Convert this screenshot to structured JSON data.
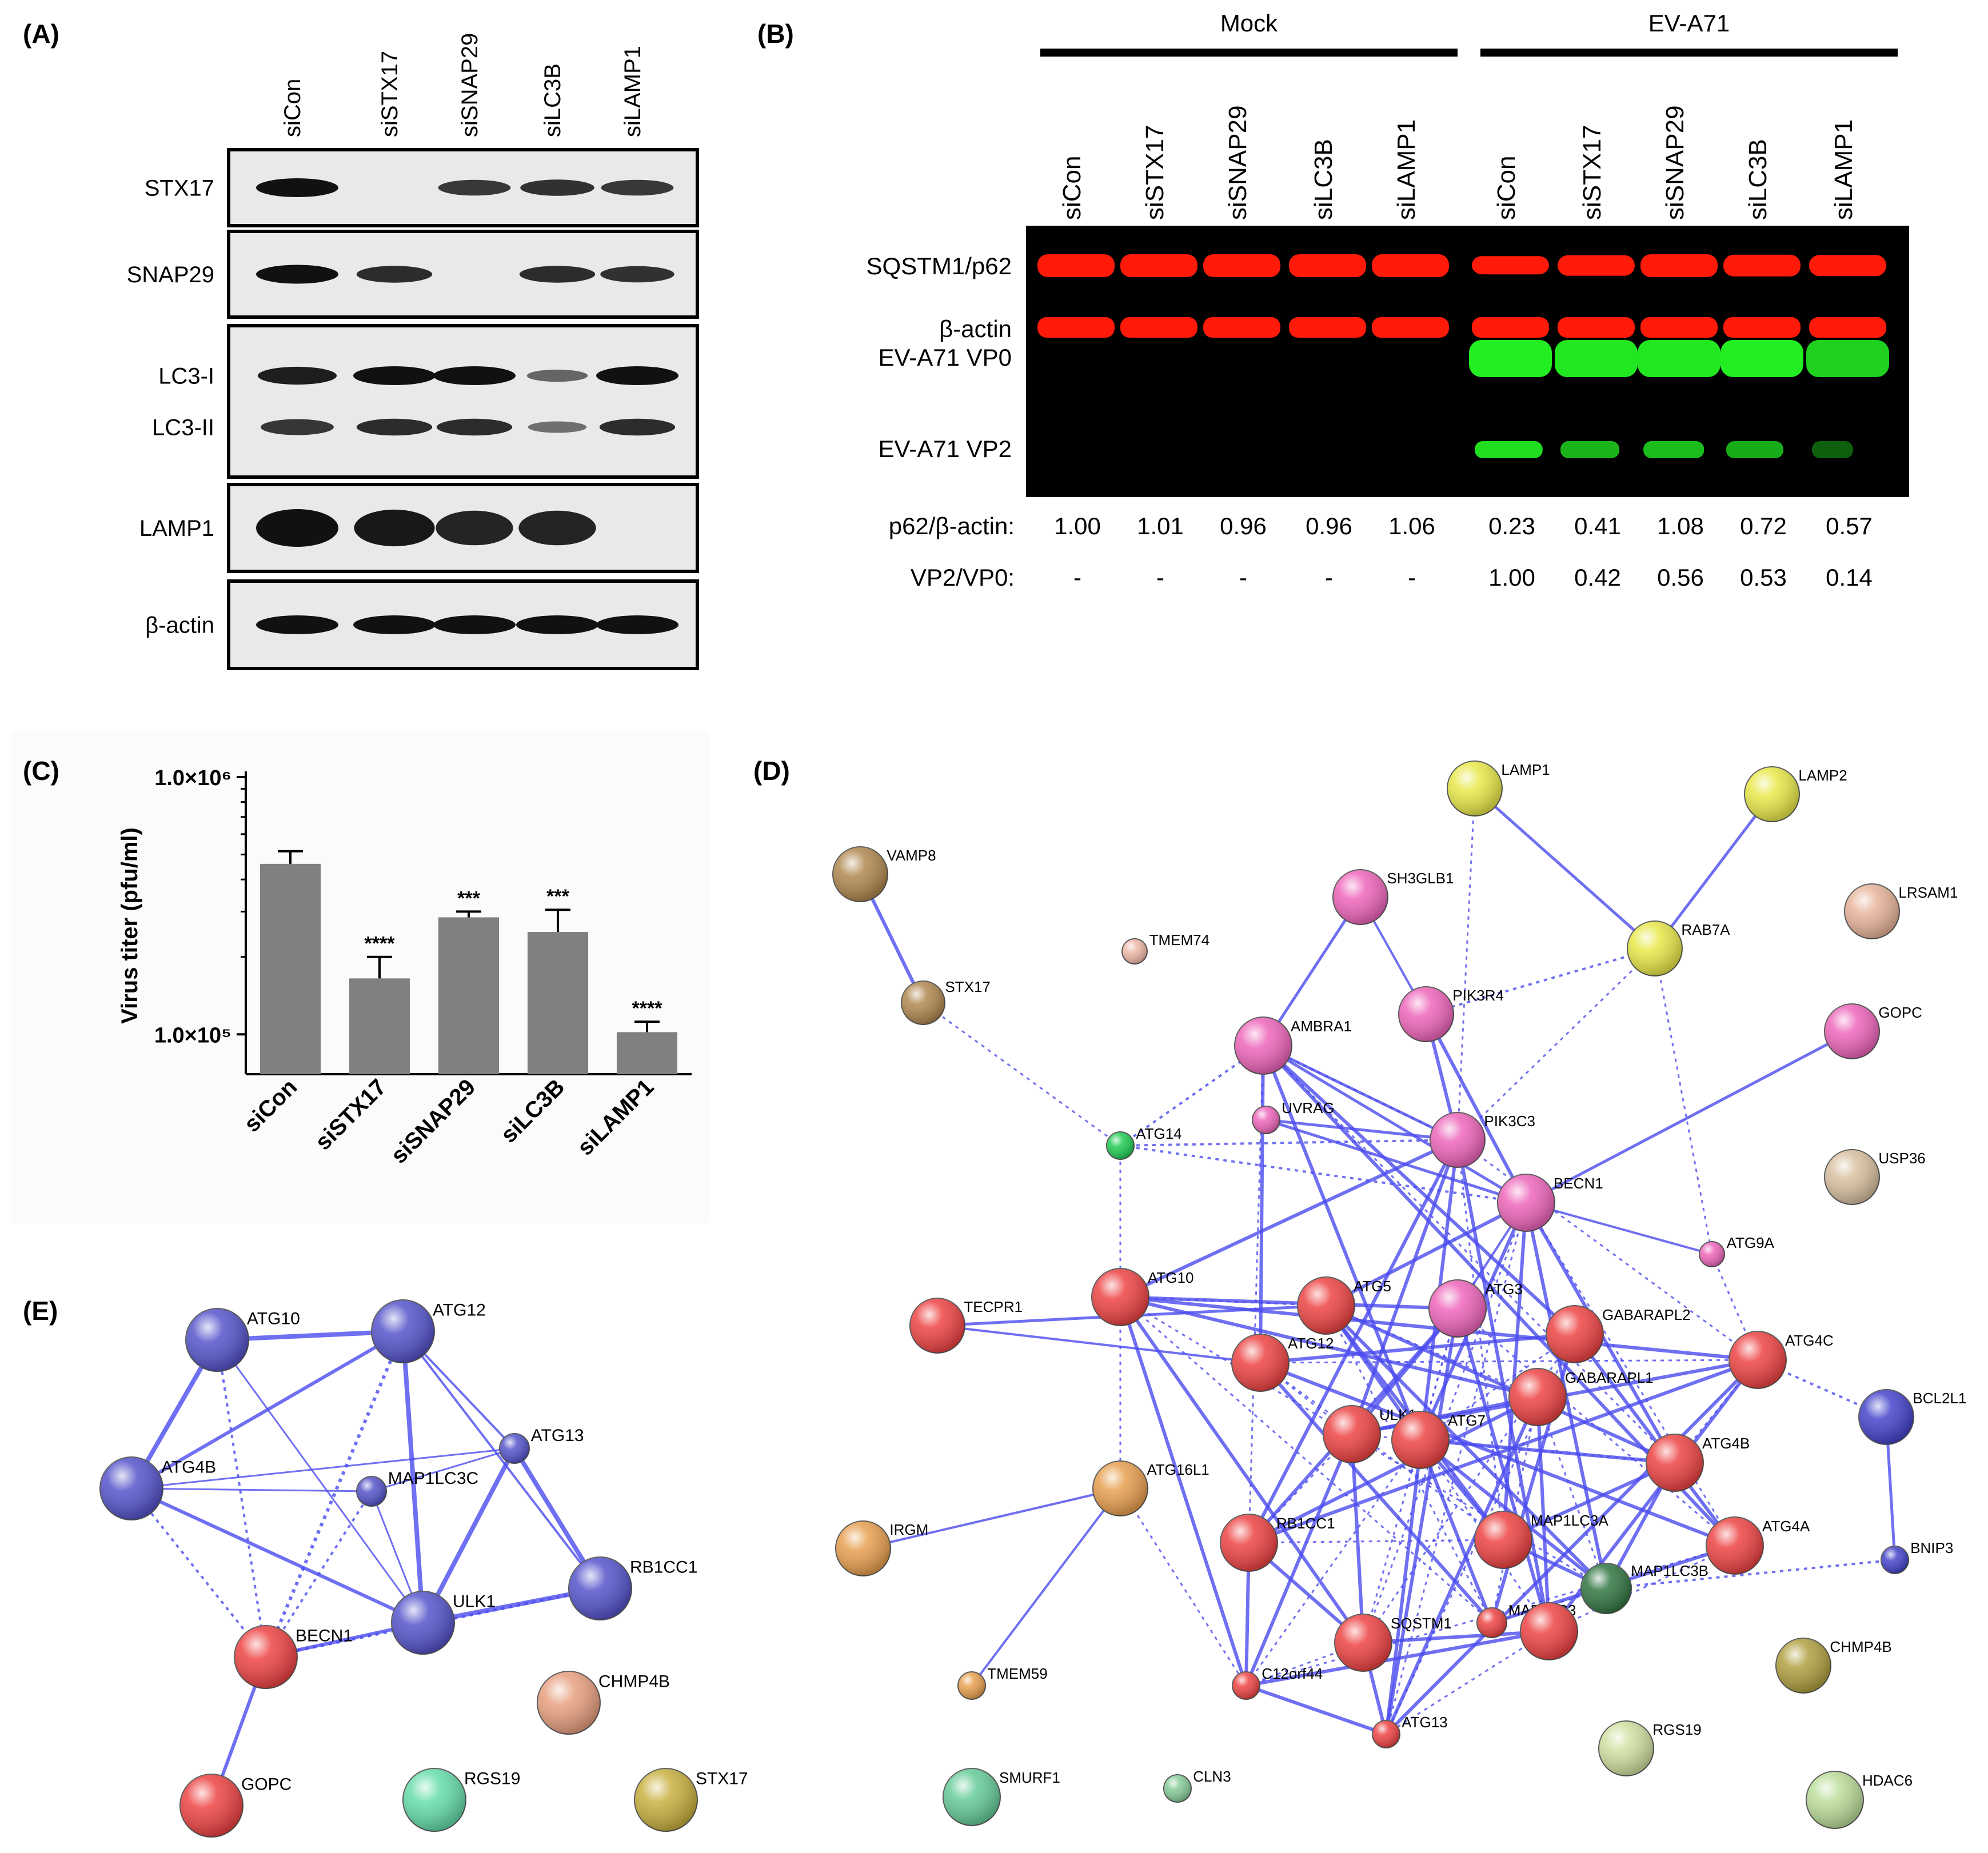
{
  "panel_a": {
    "label": "(A)",
    "lanes": [
      "siCon",
      "siSTX17",
      "siSNAP29",
      "siLC3B",
      "siLAMP1"
    ],
    "blots": [
      {
        "labels": [
          "STX17"
        ],
        "intensity": [
          1.0,
          0.0,
          0.7,
          0.75,
          0.7
        ]
      },
      {
        "labels": [
          "SNAP29"
        ],
        "intensity": [
          1.0,
          0.8,
          0.0,
          0.8,
          0.75
        ]
      },
      {
        "labels": [
          "LC3-I",
          "LC3-II"
        ],
        "intensity": [
          0.9,
          1.0,
          1.0,
          0.35,
          1.0
        ]
      },
      {
        "labels": [
          "LAMP1"
        ],
        "intensity": [
          1.0,
          0.95,
          0.85,
          0.85,
          0.0
        ]
      },
      {
        "labels": [
          "β-actin"
        ],
        "intensity": [
          1.0,
          1.0,
          1.0,
          1.0,
          1.0
        ]
      }
    ]
  },
  "panel_b": {
    "label": "(B)",
    "groups": [
      "Mock",
      "EV-A71"
    ],
    "lanes": [
      "siCon",
      "siSTX17",
      "siSNAP29",
      "siLC3B",
      "siLAMP1",
      "siCon",
      "siSTX17",
      "siSNAP29",
      "siLC3B",
      "siLAMP1"
    ],
    "row_labels": [
      "SQSTM1/p62",
      "β-actin",
      "EV-A71 VP0",
      "EV-A71 VP2"
    ],
    "ratio_rows": [
      {
        "label": "p62/β-actin:",
        "values": [
          "1.00",
          "1.01",
          "0.96",
          "0.96",
          "1.06",
          "0.23",
          "0.41",
          "1.08",
          "0.72",
          "0.57"
        ]
      },
      {
        "label": "VP2/VP0:",
        "values": [
          "-",
          "-",
          "-",
          "-",
          "-",
          "1.00",
          "0.42",
          "0.56",
          "0.53",
          "0.14"
        ]
      }
    ],
    "vp0": [
      0,
      0,
      0,
      0,
      0,
      1.0,
      0.95,
      0.95,
      1.0,
      0.8
    ],
    "vp2": [
      0,
      0,
      0,
      0,
      0,
      0.9,
      0.65,
      0.7,
      0.6,
      0.15
    ],
    "p62": [
      1,
      1,
      1,
      1,
      1,
      0.6,
      0.8,
      1.0,
      0.9,
      0.85
    ],
    "colors": {
      "red": "#ff1a0a",
      "green": "#22ee22",
      "background": "#000000"
    }
  },
  "panel_c": {
    "label": "(C)",
    "chart_data": {
      "type": "bar",
      "categories": [
        "siCon",
        "siSTX17",
        "siSNAP29",
        "siLC3B",
        "siLAMP1"
      ],
      "values": [
        460000,
        165000,
        285000,
        250000,
        102000
      ],
      "errors": [
        55000,
        35000,
        15000,
        55000,
        10000
      ],
      "significance": [
        "",
        "****",
        "***",
        "***",
        "****"
      ],
      "ylabel": "Virus titer (pfu/ml)",
      "yscale": "log",
      "ylim": [
        70000,
        1000000
      ],
      "yticks": [
        "1.0×10⁵",
        "1.0×10⁶"
      ],
      "bar_color": "#808080"
    }
  },
  "panel_d": {
    "label": "(D)",
    "nodes": [
      {
        "id": "LAMP1",
        "label": "LAMP1",
        "color": "#e8e84a",
        "r": 48
      },
      {
        "id": "LAMP2",
        "label": "LAMP2",
        "color": "#e8e84a",
        "r": 48
      },
      {
        "id": "VAMP8",
        "label": "VAMP8",
        "color": "#b08850",
        "r": 48
      },
      {
        "id": "SH3GLB1",
        "label": "SH3GLB1",
        "color": "#ee66bb",
        "r": 48
      },
      {
        "id": "LRSAM1",
        "label": "LRSAM1",
        "color": "#e8b49a",
        "r": 48
      },
      {
        "id": "TMEM74",
        "label": "TMEM74",
        "color": "#f0b8a8",
        "r": 22
      },
      {
        "id": "RAB7A",
        "label": "RAB7A",
        "color": "#e8e84a",
        "r": 48
      },
      {
        "id": "STX17",
        "label": "STX17",
        "color": "#b08850",
        "r": 38
      },
      {
        "id": "PIK3R4",
        "label": "PIK3R4",
        "color": "#ee66bb",
        "r": 48
      },
      {
        "id": "AMBRA1",
        "label": "AMBRA1",
        "color": "#ee66bb",
        "r": 50
      },
      {
        "id": "GOPC",
        "label": "GOPC",
        "color": "#ee66bb",
        "r": 48
      },
      {
        "id": "UVRAG",
        "label": "UVRAG",
        "color": "#ee66bb",
        "r": 24
      },
      {
        "id": "PIK3C3",
        "label": "PIK3C3",
        "color": "#ee66bb",
        "r": 48
      },
      {
        "id": "ATG14",
        "label": "ATG14",
        "color": "#22cc55",
        "r": 24
      },
      {
        "id": "USP36",
        "label": "USP36",
        "color": "#d8c0a0",
        "r": 48
      },
      {
        "id": "BECN1",
        "label": "BECN1",
        "color": "#ee66bb",
        "r": 50
      },
      {
        "id": "ATG9A",
        "label": "ATG9A",
        "color": "#ee66bb",
        "r": 22
      },
      {
        "id": "TECPR1",
        "label": "TECPR1",
        "color": "#ee4444",
        "r": 48
      },
      {
        "id": "ATG10",
        "label": "ATG10",
        "color": "#ee4444",
        "r": 50
      },
      {
        "id": "ATG5",
        "label": "ATG5",
        "color": "#ee4444",
        "r": 50
      },
      {
        "id": "ATG3",
        "label": "ATG3",
        "color": "#ee66bb",
        "r": 50
      },
      {
        "id": "GABARAPL2",
        "label": "GABARAPL2",
        "color": "#ee4444",
        "r": 50
      },
      {
        "id": "ATG4C",
        "label": "ATG4C",
        "color": "#ee4444",
        "r": 50
      },
      {
        "id": "BCL2L1",
        "label": "BCL2L1",
        "color": "#4444cc",
        "r": 48
      },
      {
        "id": "ATG12",
        "label": "ATG12",
        "color": "#ee4444",
        "r": 50
      },
      {
        "id": "GABARAPL1",
        "label": "GABARAPL1",
        "color": "#ee4444",
        "r": 50
      },
      {
        "id": "ULK1",
        "label": "ULK1",
        "color": "#ee4444",
        "r": 50
      },
      {
        "id": "ATG7",
        "label": "ATG7",
        "color": "#ee4444",
        "r": 50
      },
      {
        "id": "ATG4B",
        "label": "ATG4B",
        "color": "#ee4444",
        "r": 50
      },
      {
        "id": "ATG16L1",
        "label": "ATG16L1",
        "color": "#e8a050",
        "r": 48
      },
      {
        "id": "IRGM",
        "label": "IRGM",
        "color": "#e8a050",
        "r": 48
      },
      {
        "id": "RB1CC1",
        "label": "RB1CC1",
        "color": "#ee4444",
        "r": 50
      },
      {
        "id": "MAP1LC3A",
        "label": "MAP1LC3A",
        "color": "#ee4444",
        "r": 50
      },
      {
        "id": "ATG4A",
        "label": "ATG4A",
        "color": "#ee4444",
        "r": 50
      },
      {
        "id": "BNIP3",
        "label": "BNIP3",
        "color": "#4444cc",
        "r": 24
      },
      {
        "id": "MAP1LC3B",
        "label": "MAP1LC3B",
        "color": "#337744",
        "r": 44
      },
      {
        "id": "SQSTM1",
        "label": "SQSTM1",
        "color": "#ee4444",
        "r": 50
      },
      {
        "id": "MAP1LC3",
        "label": "MAP1LC3",
        "color": "#ee4444",
        "r": 26
      },
      {
        "id": "MAP1LC3C",
        "label": "",
        "color": "#ee4444",
        "r": 50
      },
      {
        "id": "C12orf44",
        "label": "C12orf44",
        "color": "#ee4444",
        "r": 24
      },
      {
        "id": "ATG13",
        "label": "ATG13",
        "color": "#ee4444",
        "r": 24
      },
      {
        "id": "TMEM59",
        "label": "TMEM59",
        "color": "#e8a050",
        "r": 24
      },
      {
        "id": "CHMP4B",
        "label": "CHMP4B",
        "color": "#b0a040",
        "r": 48
      },
      {
        "id": "RGS19",
        "label": "RGS19",
        "color": "#d0e0a0",
        "r": 48
      },
      {
        "id": "SMURF1",
        "label": "SMURF1",
        "color": "#66cc99",
        "r": 50
      },
      {
        "id": "CLN3",
        "label": "CLN3",
        "color": "#88cc99",
        "r": 24
      },
      {
        "id": "HDAC6",
        "label": "HDAC6",
        "color": "#bbdd99",
        "r": 50
      }
    ]
  },
  "panel_e": {
    "label": "(E)",
    "nodes": [
      {
        "id": "ATG10",
        "label": "ATG10",
        "color": "#5555cc",
        "r": 55
      },
      {
        "id": "ATG12",
        "label": "ATG12",
        "color": "#5555cc",
        "r": 55
      },
      {
        "id": "ATG13",
        "label": "ATG13",
        "color": "#5555cc",
        "r": 26
      },
      {
        "id": "ATG4B",
        "label": "ATG4B",
        "color": "#5555cc",
        "r": 55
      },
      {
        "id": "MAP1LC3C",
        "label": "MAP1LC3C",
        "color": "#5555cc",
        "r": 26
      },
      {
        "id": "ULK1",
        "label": "ULK1",
        "color": "#5555cc",
        "r": 55
      },
      {
        "id": "RB1CC1",
        "label": "RB1CC1",
        "color": "#5555cc",
        "r": 55
      },
      {
        "id": "BECN1",
        "label": "BECN1",
        "color": "#ee4444",
        "r": 55
      },
      {
        "id": "CHMP4B",
        "label": "CHMP4B",
        "color": "#e8a080",
        "r": 55
      },
      {
        "id": "GOPC",
        "label": "GOPC",
        "color": "#ee4444",
        "r": 55
      },
      {
        "id": "RGS19",
        "label": "RGS19",
        "color": "#66ddaa",
        "r": 55
      },
      {
        "id": "STX17",
        "label": "STX17",
        "color": "#c8b040",
        "r": 55
      }
    ]
  }
}
